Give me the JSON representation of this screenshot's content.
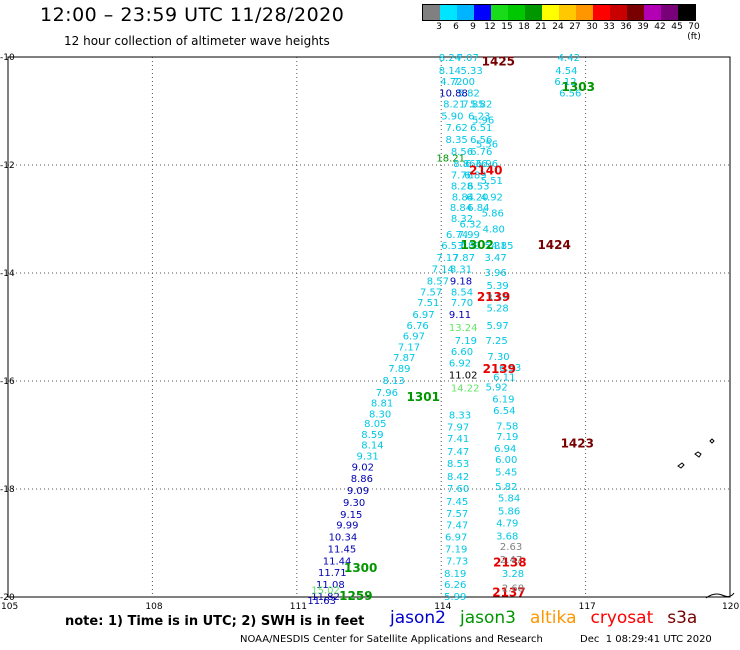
{
  "header": {
    "title": "12:00 – 23:59 UTC 11/28/2020",
    "subtitle": "12 hour collection of altimeter wave heights",
    "scale_labels": [
      "3",
      "6",
      "9",
      "12",
      "15",
      "18",
      "21",
      "24",
      "27",
      "30",
      "33",
      "36",
      "39",
      "42",
      "45",
      "70 (ft)"
    ],
    "scale_colors": [
      "#808080",
      "#00e5ff",
      "#00b4ff",
      "#0000ff",
      "#1adb1a",
      "#00c800",
      "#009600",
      "#ffff00",
      "#ffc800",
      "#ff9600",
      "#ff0000",
      "#c80000",
      "#780000",
      "#b400b4",
      "#780078",
      "#000000"
    ]
  },
  "footer": {
    "note": "note: 1) Time is in UTC; 2) SWH is in feet",
    "credit": "NOAA/NESDIS Center for Satellite Applications and Research",
    "timestamp": "Dec  1 08:29:41 UTC 2020",
    "legend": [
      {
        "name": "jason2",
        "color": "#0000cc"
      },
      {
        "name": "jason3",
        "color": "#009600"
      },
      {
        "name": "altika",
        "color": "#ff9600"
      },
      {
        "name": "cryosat",
        "color": "#ff0000"
      },
      {
        "name": "s3a",
        "color": "#780000"
      }
    ]
  },
  "chart_data": {
    "type": "scatter",
    "title": "12:00 – 23:59 UTC 11/28/2020",
    "subtitle": "12 hour collection of altimeter wave heights",
    "xlim": [
      105,
      120
    ],
    "ylim": [
      -20,
      -10
    ],
    "x_ticks": [
      105,
      108,
      111,
      114,
      117,
      120
    ],
    "y_ticks": [
      -10,
      -12,
      -14,
      -16,
      -18,
      -20
    ],
    "x_tick_labels": [
      "105",
      "108",
      "111",
      "114",
      "117",
      "120"
    ],
    "y_tick_labels": [
      "-10",
      "-12",
      "-14",
      "-16",
      "-18",
      "-20"
    ],
    "grid": true,
    "colors": {
      "cyan": "#00c8e6",
      "blue": "#0000b4",
      "navy": "#000080",
      "green": "#009600",
      "lime": "#64e664",
      "red": "#e60000",
      "maroon": "#780000",
      "gray": "#808080",
      "black": "#000000"
    },
    "series": [
      {
        "color": "cyan",
        "points": [
          [
            113.95,
            -10.0,
            "8.24"
          ],
          [
            114.32,
            -10.0,
            "7.07"
          ],
          [
            116.42,
            -10.0,
            "4.42"
          ],
          [
            113.95,
            -10.24,
            "8.14"
          ],
          [
            114.4,
            -10.24,
            "5.33"
          ],
          [
            116.37,
            -10.24,
            "4.54"
          ],
          [
            113.98,
            -10.44,
            "4.72"
          ],
          [
            114.24,
            -10.44,
            "7.00"
          ],
          [
            116.35,
            -10.44,
            "6.12"
          ],
          [
            114.34,
            -10.66,
            "5.82"
          ],
          [
            116.45,
            -10.66,
            "6.56"
          ],
          [
            114.04,
            -10.86,
            "8.21"
          ],
          [
            114.44,
            -10.86,
            "7.85"
          ],
          [
            114.6,
            -10.86,
            "5.82"
          ],
          [
            114.0,
            -11.08,
            "5.90"
          ],
          [
            114.56,
            -11.08,
            "6.23"
          ],
          [
            114.64,
            -11.16,
            "5.96"
          ],
          [
            114.09,
            -11.3,
            "7.62"
          ],
          [
            114.6,
            -11.3,
            "6.51"
          ],
          [
            114.09,
            -11.52,
            "8.35"
          ],
          [
            114.6,
            -11.52,
            "6.56"
          ],
          [
            114.72,
            -11.6,
            "5.56"
          ],
          [
            114.2,
            -11.74,
            "8.56"
          ],
          [
            114.6,
            -11.74,
            "6.76"
          ],
          [
            114.25,
            -11.96,
            "8.86"
          ],
          [
            114.5,
            -11.96,
            "6.36"
          ],
          [
            114.72,
            -11.96,
            "6.96"
          ],
          [
            114.2,
            -12.18,
            "7.76"
          ],
          [
            114.48,
            -12.18,
            "6.89"
          ],
          [
            114.2,
            -12.38,
            "8.28"
          ],
          [
            114.54,
            -12.38,
            "6.53"
          ],
          [
            114.82,
            -12.28,
            "5.51"
          ],
          [
            114.22,
            -12.58,
            "8.84"
          ],
          [
            114.52,
            -12.58,
            "6.20"
          ],
          [
            114.82,
            -12.58,
            "4.92"
          ],
          [
            114.18,
            -12.78,
            "8.84"
          ],
          [
            114.54,
            -12.78,
            "6.84"
          ],
          [
            114.84,
            -12.88,
            "5.86"
          ],
          [
            114.2,
            -12.98,
            "8.32"
          ],
          [
            114.38,
            -13.08,
            "6.32"
          ],
          [
            114.86,
            -13.18,
            "4.80"
          ],
          [
            114.1,
            -13.28,
            "6.74"
          ],
          [
            114.34,
            -13.28,
            "7.99"
          ],
          [
            114.9,
            -13.48,
            "5.31"
          ],
          [
            114.0,
            -13.48,
            "6.53"
          ],
          [
            114.36,
            -13.48,
            "7.89"
          ],
          [
            115.04,
            -13.48,
            "4.85"
          ],
          [
            113.9,
            -13.7,
            "7.17"
          ],
          [
            114.24,
            -13.7,
            "7.87"
          ],
          [
            114.9,
            -13.7,
            "3.47"
          ],
          [
            113.8,
            -13.92,
            "7.14"
          ],
          [
            114.18,
            -13.92,
            "8.31"
          ],
          [
            114.9,
            -13.98,
            "3.96"
          ],
          [
            113.7,
            -14.14,
            "8.57"
          ],
          [
            114.94,
            -14.22,
            "5.39"
          ],
          [
            113.56,
            -14.34,
            "7.57"
          ],
          [
            114.2,
            -14.34,
            "8.54"
          ],
          [
            114.94,
            -14.44,
            "3.59"
          ],
          [
            113.5,
            -14.54,
            "7.51"
          ],
          [
            114.2,
            -14.54,
            "7.70"
          ],
          [
            114.94,
            -14.64,
            "5.28"
          ],
          [
            113.4,
            -14.76,
            "6.97"
          ],
          [
            114.94,
            -14.96,
            "5.97"
          ],
          [
            113.28,
            -14.96,
            "6.76"
          ],
          [
            114.92,
            -15.24,
            "7.25"
          ],
          [
            113.2,
            -15.16,
            "6.97"
          ],
          [
            114.28,
            -15.24,
            "7.19"
          ],
          [
            114.96,
            -15.54,
            "7.30"
          ],
          [
            113.1,
            -15.36,
            "7.17"
          ],
          [
            114.2,
            -15.44,
            "6.60"
          ],
          [
            115.2,
            -15.74,
            "6.53"
          ],
          [
            113.0,
            -15.56,
            "7.87"
          ],
          [
            114.16,
            -15.66,
            "6.92"
          ],
          [
            115.08,
            -15.92,
            "6.11"
          ],
          [
            112.9,
            -15.76,
            "7.89"
          ],
          [
            114.92,
            -16.1,
            "5.92"
          ],
          [
            112.78,
            -15.98,
            "8.13"
          ],
          [
            115.06,
            -16.32,
            "6.19"
          ],
          [
            112.64,
            -16.2,
            "7.96"
          ],
          [
            115.08,
            -16.54,
            "6.54"
          ],
          [
            112.54,
            -16.4,
            "8.81"
          ],
          [
            115.14,
            -16.82,
            "7.58"
          ],
          [
            112.5,
            -16.6,
            "8.30"
          ],
          [
            114.16,
            -16.62,
            "8.33"
          ],
          [
            115.14,
            -17.02,
            "7.19"
          ],
          [
            112.4,
            -16.78,
            "8.05"
          ],
          [
            114.12,
            -16.84,
            "7.97"
          ],
          [
            115.1,
            -17.24,
            "6.94"
          ],
          [
            112.34,
            -16.98,
            "8.59"
          ],
          [
            114.12,
            -17.06,
            "7.41"
          ],
          [
            115.12,
            -17.44,
            "6.00"
          ],
          [
            112.34,
            -17.18,
            "8.14"
          ],
          [
            114.12,
            -17.3,
            "7.47"
          ],
          [
            115.12,
            -17.68,
            "5.45"
          ],
          [
            112.24,
            -17.38,
            "9.31"
          ],
          [
            114.12,
            -17.52,
            "8.53"
          ],
          [
            115.12,
            -17.94,
            "5.82"
          ],
          [
            114.12,
            -17.76,
            "8.42"
          ],
          [
            115.18,
            -18.16,
            "5.84"
          ],
          [
            114.12,
            -17.98,
            "7.60"
          ],
          [
            115.18,
            -18.4,
            "5.86"
          ],
          [
            114.1,
            -18.22,
            "7.45"
          ],
          [
            115.14,
            -18.62,
            "4.79"
          ],
          [
            114.1,
            -18.44,
            "7.57"
          ],
          [
            115.14,
            -18.86,
            "3.68"
          ],
          [
            114.1,
            -18.66,
            "7.47"
          ],
          [
            115.26,
            -19.56,
            "3.28"
          ],
          [
            114.08,
            -18.88,
            "6.97"
          ],
          [
            114.08,
            -19.1,
            "7.19"
          ],
          [
            114.1,
            -19.32,
            "7.73"
          ],
          [
            114.06,
            -19.56,
            "8.19"
          ],
          [
            114.06,
            -19.76,
            "6.26"
          ],
          [
            114.06,
            -19.98,
            "5.99"
          ]
        ]
      },
      {
        "color": "blue",
        "points": [
          [
            113.96,
            -10.66,
            "10.88"
          ],
          [
            114.18,
            -14.14,
            "9.18"
          ],
          [
            114.16,
            -14.76,
            "9.11"
          ],
          [
            112.14,
            -17.58,
            "9.02"
          ],
          [
            112.12,
            -17.8,
            "8.86"
          ],
          [
            112.04,
            -18.02,
            "9.09"
          ],
          [
            111.96,
            -18.24,
            "9.30"
          ],
          [
            111.9,
            -18.46,
            "9.15"
          ],
          [
            111.82,
            -18.66,
            "9.99"
          ],
          [
            111.66,
            -18.88,
            "10.34"
          ],
          [
            111.64,
            -19.1,
            "11.45"
          ],
          [
            111.54,
            -19.32,
            "11.44"
          ],
          [
            111.44,
            -19.54,
            "11.71"
          ],
          [
            111.4,
            -19.76,
            "11.08"
          ],
          [
            111.3,
            -19.98,
            "11.82"
          ],
          [
            111.22,
            -20.06,
            "11.63"
          ]
        ]
      },
      {
        "color": "black",
        "points": [
          [
            114.16,
            -15.88,
            "11.02"
          ]
        ]
      },
      {
        "color": "green",
        "points": [
          [
            113.9,
            -11.86,
            "18.21"
          ],
          [
            114.4,
            -13.48,
            "1302"
          ],
          [
            116.5,
            -10.56,
            "1303"
          ],
          [
            113.28,
            -16.3,
            "1301"
          ],
          [
            111.98,
            -19.46,
            "1300"
          ],
          [
            111.88,
            -19.98,
            "1259"
          ]
        ]
      },
      {
        "color": "lime",
        "points": [
          [
            114.16,
            -15.0,
            "13.24"
          ],
          [
            114.2,
            -16.12,
            "14.22"
          ],
          [
            111.3,
            -19.86,
            "15.02"
          ]
        ]
      },
      {
        "color": "red",
        "points": [
          [
            114.58,
            -12.1,
            "2140"
          ],
          [
            114.74,
            -14.44,
            "2139"
          ],
          [
            114.86,
            -15.78,
            "2139"
          ],
          [
            115.08,
            -19.36,
            "2138"
          ],
          [
            115.06,
            -19.92,
            "2137"
          ]
        ]
      },
      {
        "color": "maroon",
        "points": [
          [
            114.84,
            -10.08,
            "1425"
          ],
          [
            116.0,
            -13.48,
            "1424"
          ],
          [
            116.48,
            -17.16,
            "1423"
          ]
        ]
      },
      {
        "color": "gray",
        "points": [
          [
            115.22,
            -19.06,
            "2.63"
          ],
          [
            115.22,
            -19.3,
            "2.47"
          ],
          [
            115.26,
            -19.82,
            "2.68"
          ]
        ]
      }
    ]
  }
}
